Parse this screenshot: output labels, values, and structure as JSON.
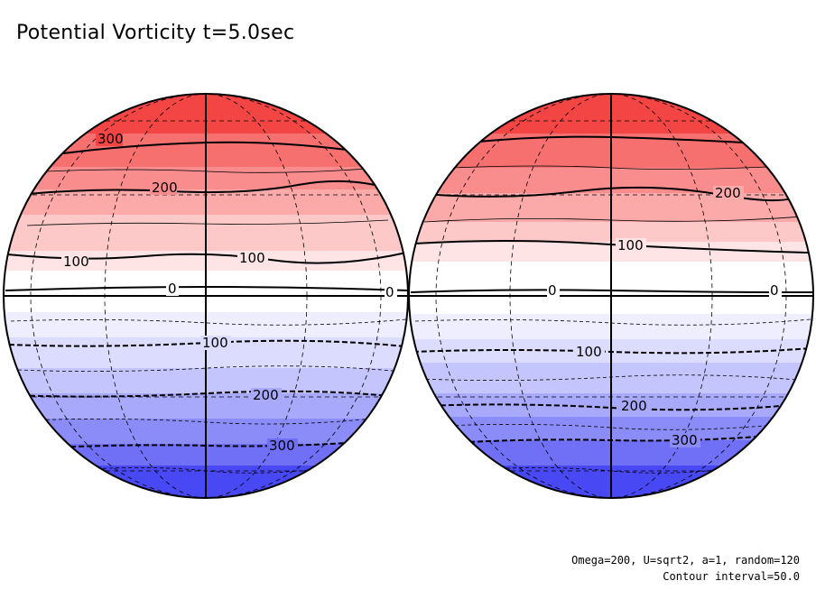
{
  "title": "Potential Vorticity t=5.0sec",
  "footer": {
    "params": "Omega=200, U=sqrt2, a=1, random=120",
    "contour": "Contour interval=50.0"
  },
  "colors": {
    "positive_max": "#f43f3f",
    "negative_max": "#3f3ff4",
    "zero": "#ffffff",
    "contour": "#000000"
  },
  "globes": [
    {
      "name": "left-globe",
      "contour_labels": [
        "300",
        "200",
        "100",
        "100",
        "0",
        "0",
        "100",
        "200",
        "300"
      ]
    },
    {
      "name": "right-globe",
      "contour_labels": [
        "200",
        "100",
        "0",
        "0",
        "100",
        "200",
        "300"
      ]
    }
  ]
}
